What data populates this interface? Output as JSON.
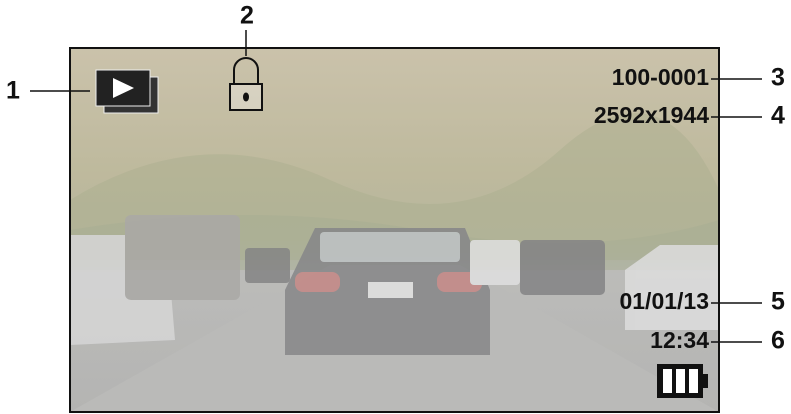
{
  "screen": {
    "file_number": "100-0001",
    "resolution": "2592x1944",
    "date": "01/01/13",
    "time": "12:34"
  },
  "callouts": [
    "1",
    "2",
    "3",
    "4",
    "5",
    "6"
  ]
}
